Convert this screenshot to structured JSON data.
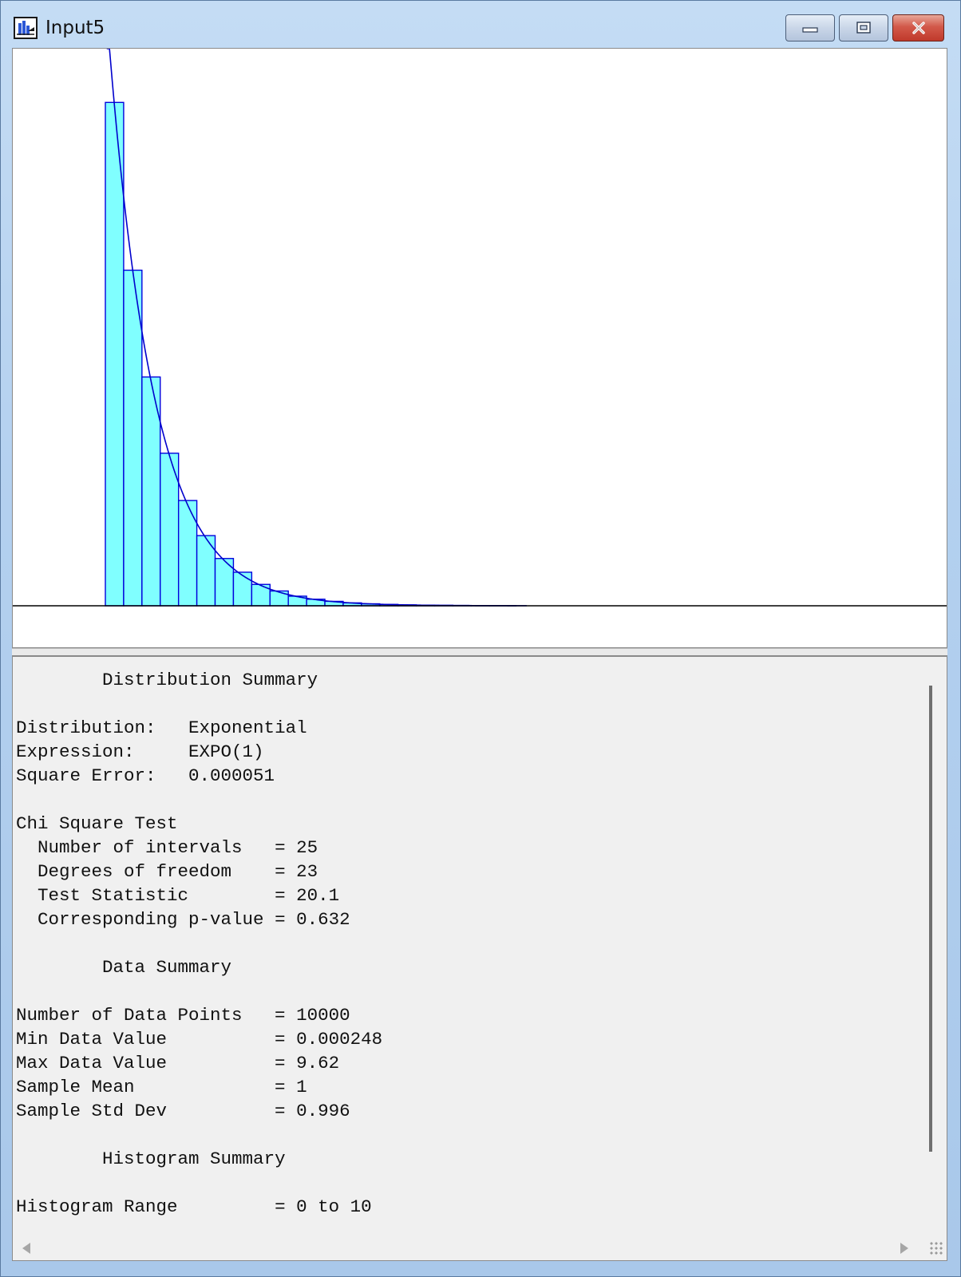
{
  "window": {
    "title": "Input5",
    "icon": "histogram-app-icon",
    "controls": [
      "minimize-icon",
      "maximize-icon",
      "close-icon"
    ],
    "colors": {
      "close": "#c0392b",
      "frame": "#b3d0ef"
    }
  },
  "chart_data": {
    "type": "bar",
    "bars": [
      0.2,
      0.6,
      1.0,
      1.4,
      1.8,
      2.2,
      2.6,
      3.0,
      3.4,
      3.8,
      4.2,
      4.6,
      5.0,
      5.4,
      5.8,
      6.2,
      6.6,
      7.0,
      7.4,
      7.8,
      8.2,
      8.6,
      9.0,
      9.4,
      9.8
    ],
    "values": [
      0.33,
      0.22,
      0.15,
      0.1,
      0.069,
      0.046,
      0.031,
      0.022,
      0.014,
      0.0097,
      0.0063,
      0.0043,
      0.0029,
      0.0019,
      0.0013,
      0.0009,
      0.0006,
      0.0004,
      0.0003,
      0.0002,
      0.0001,
      0.0001,
      0.0001,
      0,
      0
    ],
    "bin_width": 0.4,
    "xlim": [
      0,
      10
    ],
    "fit_curve": {
      "distribution": "Exponential",
      "mean": 1
    },
    "grid": false,
    "colors": {
      "bar_fill": "#80ffff",
      "bar_stroke": "#0000dd",
      "curve": "#0000cc",
      "axis": "#000000"
    }
  },
  "summary": {
    "dist_heading": "Distribution Summary",
    "distribution_label": "Distribution:",
    "distribution_value": "Exponential",
    "expression_label": "Expression:",
    "expression_value": "EXPO(1)",
    "square_error_label": "Square Error:",
    "square_error_value": "0.000051",
    "chi_heading": "Chi Square Test",
    "intervals_label": "Number of intervals",
    "intervals_value": "25",
    "dof_label": "Degrees of freedom",
    "dof_value": "23",
    "test_stat_label": "Test Statistic",
    "test_stat_value": "20.1",
    "pvalue_label": "Corresponding p-value",
    "pvalue_value": "0.632",
    "data_heading": "Data Summary",
    "npoints_label": "Number of Data Points",
    "npoints_value": "10000",
    "min_label": "Min Data Value",
    "min_value": "0.000248",
    "max_label": "Max Data Value",
    "max_value": "9.62",
    "mean_label": "Sample Mean",
    "mean_value": "1",
    "std_label": "Sample Std Dev",
    "std_value": "0.996",
    "hist_heading": "Histogram Summary",
    "range_label": "Histogram Range",
    "range_value": "0 to 10"
  }
}
